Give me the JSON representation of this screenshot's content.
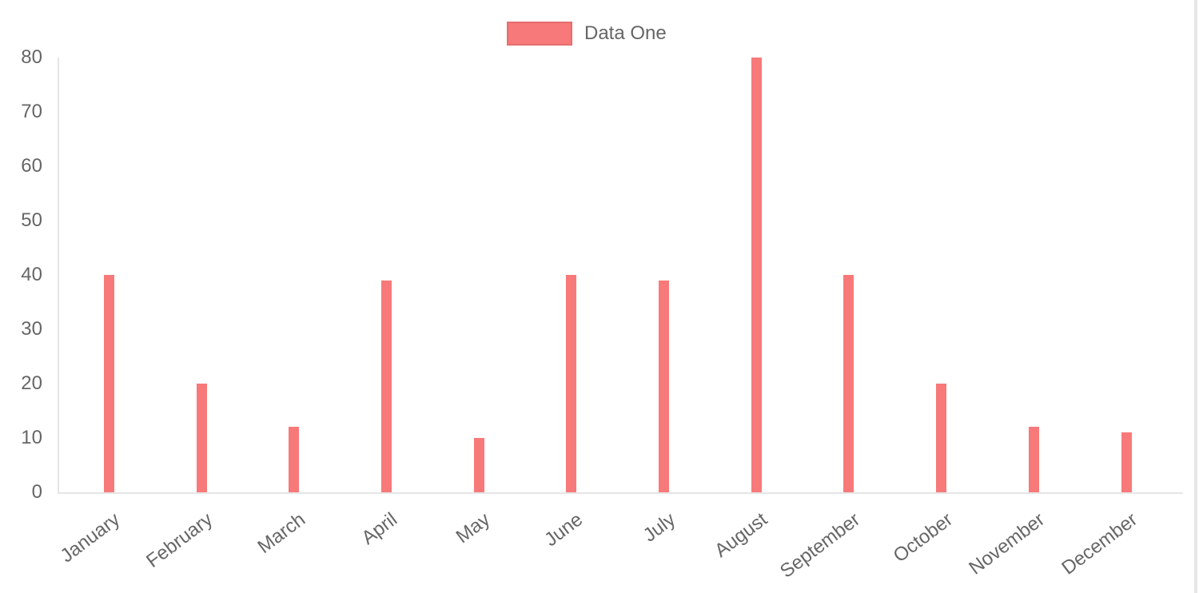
{
  "chart_data": {
    "type": "bar",
    "title": "",
    "categories": [
      "January",
      "February",
      "March",
      "April",
      "May",
      "June",
      "July",
      "August",
      "September",
      "October",
      "November",
      "December"
    ],
    "series": [
      {
        "name": "Data One",
        "color": "#f87979",
        "values": [
          40,
          20,
          12,
          39,
          10,
          40,
          39,
          80,
          40,
          20,
          12,
          11
        ]
      }
    ],
    "ylim": [
      0,
      80
    ],
    "yticks": [
      80,
      70,
      60,
      50,
      40,
      30,
      20,
      10,
      0
    ],
    "grid": false,
    "legend_position": "top-center",
    "x_label_rotation_deg": -37,
    "axis_line_color": "rgba(0,0,0,0.1)",
    "tick_text_color": "#666666"
  },
  "page": {
    "background": "#ffffff",
    "right_edge_line_color": "#e7e7e7"
  }
}
